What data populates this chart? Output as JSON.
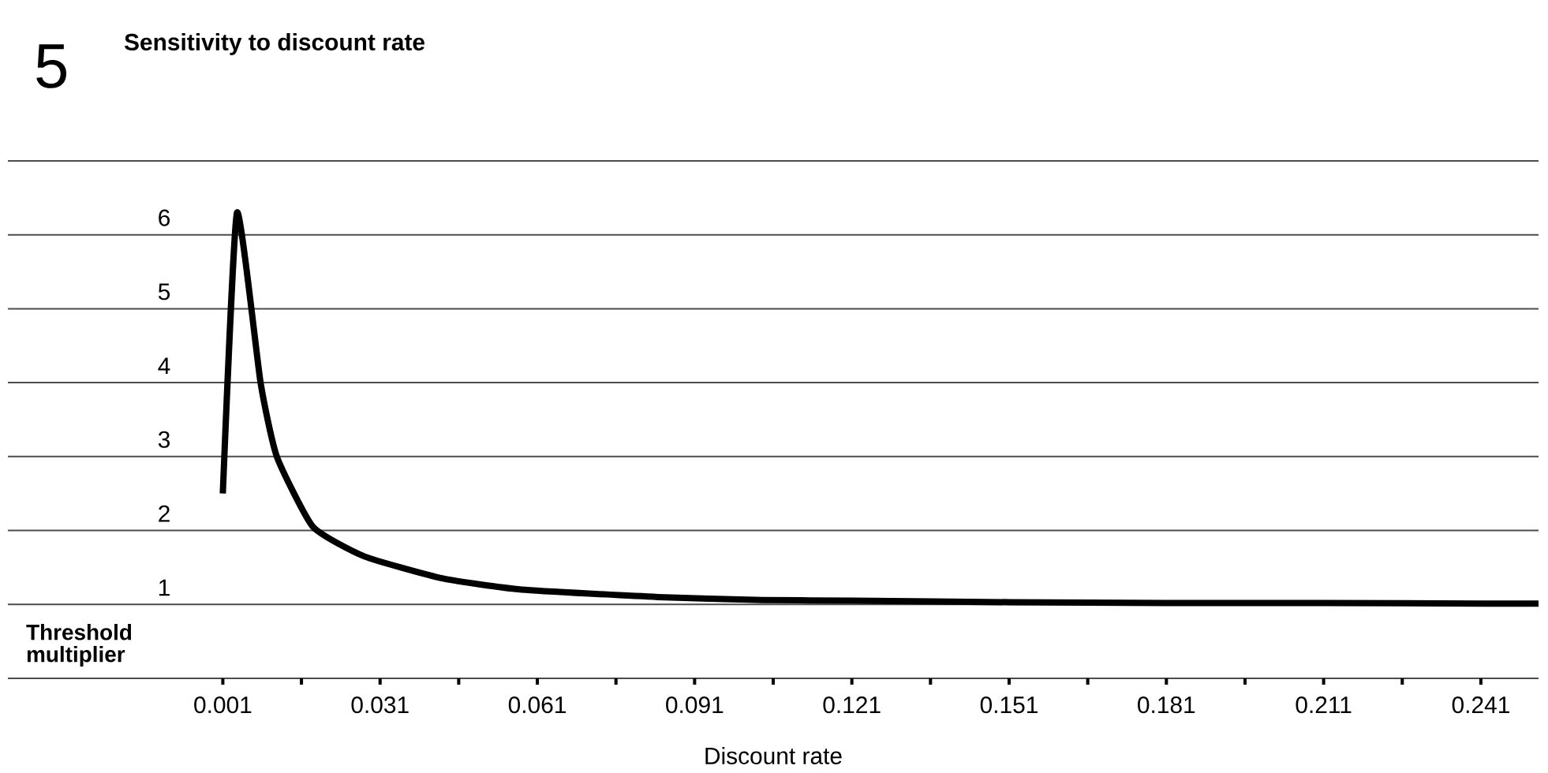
{
  "chart_data": {
    "type": "line",
    "title": "Sensitivity to discount rate",
    "xlabel": "Discount rate",
    "ylabel": "Threshold multiplier",
    "annotations": [
      "5"
    ],
    "x": [
      0.001,
      0.0037,
      0.0082,
      0.0113,
      0.0182,
      0.028,
      0.043,
      0.058,
      0.084,
      0.104,
      0.121,
      0.151,
      0.181,
      0.211,
      0.241,
      0.252
    ],
    "series": [
      {
        "color": "#000000",
        "values": [
          2.5,
          6.3,
          4.0,
          3.0,
          2.05,
          1.65,
          1.35,
          1.2,
          1.1,
          1.06,
          1.05,
          1.03,
          1.02,
          1.02,
          1.01,
          1.01
        ]
      }
    ],
    "xlim": [
      -0.04,
      0.252
    ],
    "ylim": [
      0,
      7
    ],
    "xticks": [
      0.001,
      {
        "value": 0.016,
        "label": null
      },
      0.031,
      {
        "value": 0.046,
        "label": null
      },
      0.061,
      {
        "value": 0.076,
        "label": null
      },
      0.091,
      {
        "value": 0.106,
        "label": null
      },
      0.121,
      {
        "value": 0.136,
        "label": null
      },
      0.151,
      {
        "value": 0.166,
        "label": null
      },
      0.181,
      {
        "value": 0.196,
        "label": null
      },
      0.211,
      {
        "value": 0.226,
        "label": null
      },
      0.241
    ],
    "yticks": [
      {
        "value": 0,
        "label": null
      },
      1,
      2,
      3,
      4,
      5,
      6,
      {
        "value": 7,
        "label": null
      }
    ],
    "grid": "y",
    "marker": "none",
    "line_style": "solid"
  }
}
